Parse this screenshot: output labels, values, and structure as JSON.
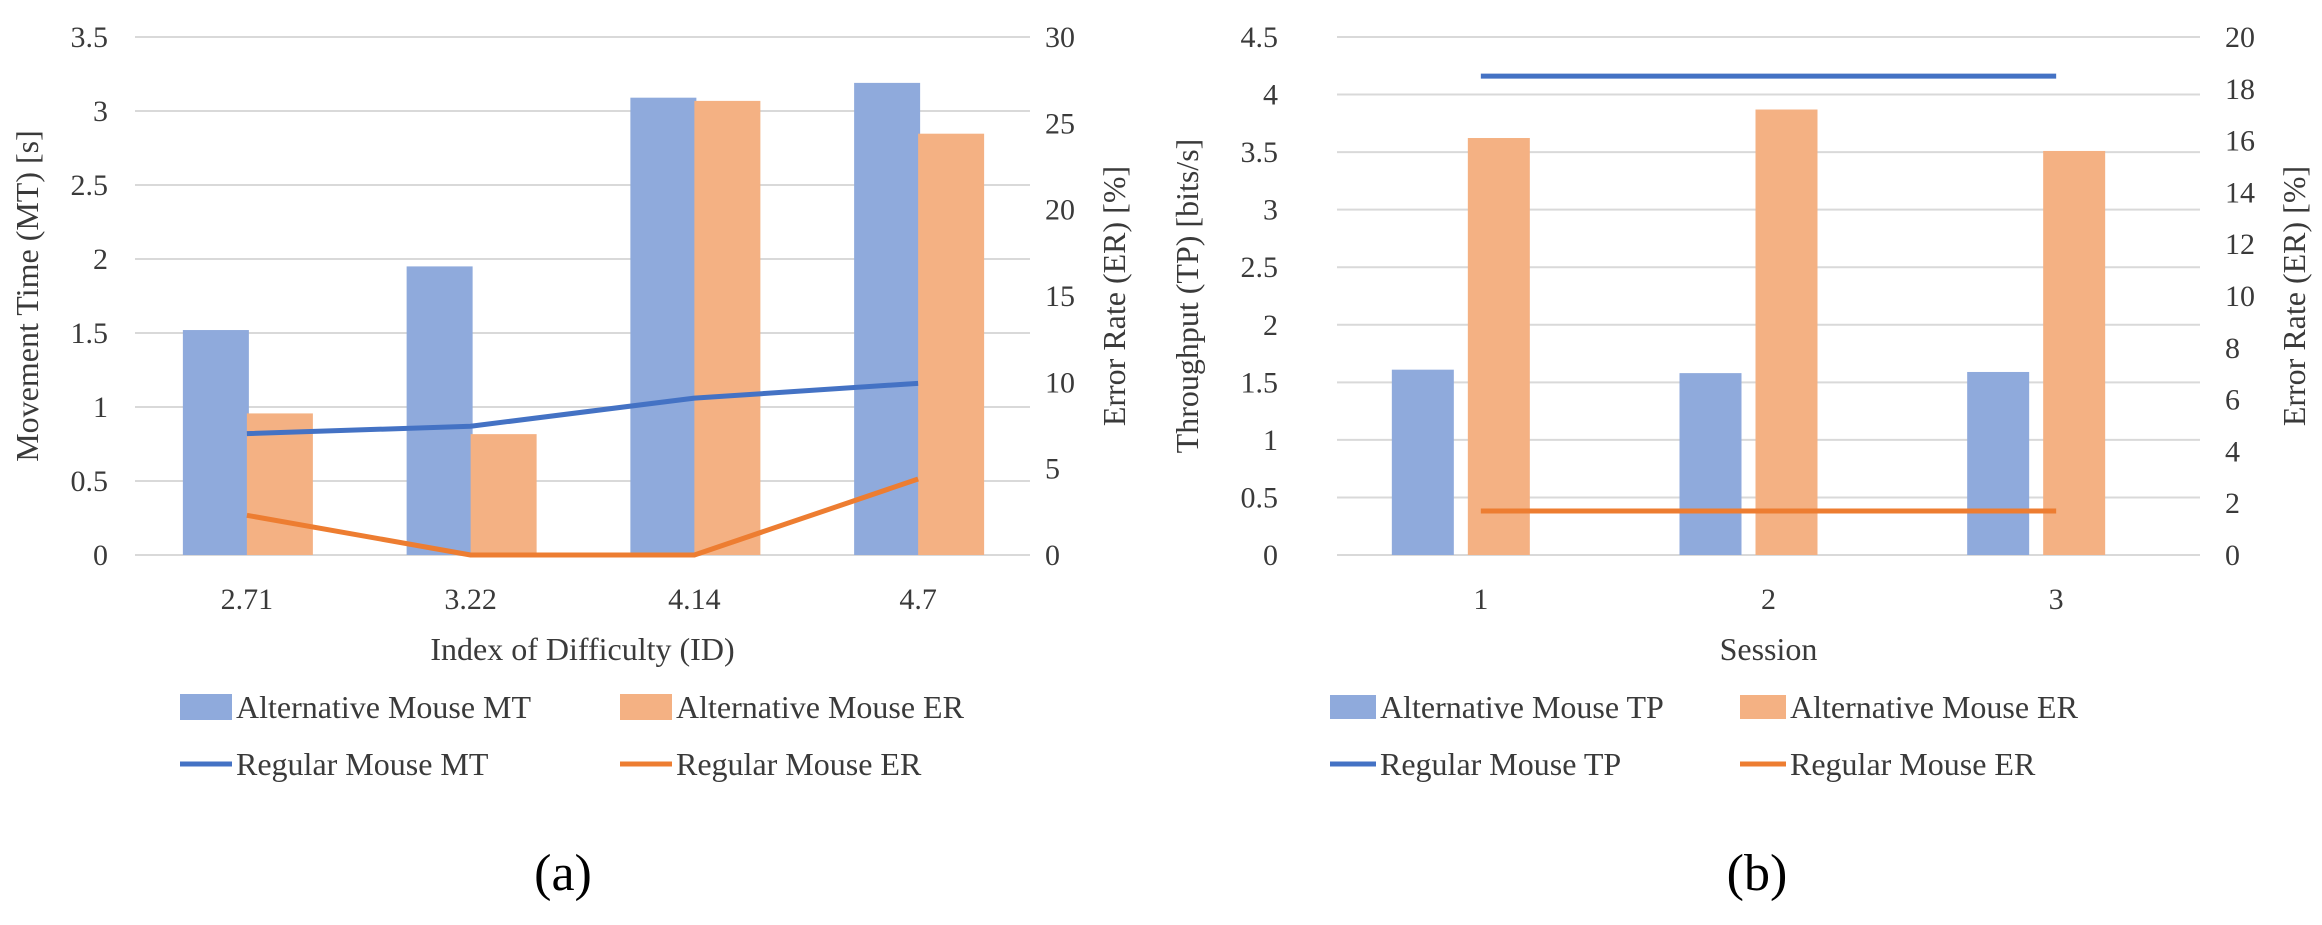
{
  "colors": {
    "alt_bar_1": "#8faadc",
    "alt_bar_2": "#f4b183",
    "reg_line_1": "#4472c4",
    "reg_line_2": "#ed7d31",
    "grid": "#d9d9d9",
    "text": "#3a3a3a"
  },
  "chart_data": [
    {
      "id": "a",
      "type": "bar",
      "panel_label": "(a)",
      "xlabel": "Index of Difficulty (ID)",
      "ylabel": "Movement Time (MT) [s]",
      "y2label": "Error Rate (ER) [%]",
      "categories": [
        "2.71",
        "3.22",
        "4.14",
        "4.7"
      ],
      "ylim": [
        0,
        3.5
      ],
      "yticks": [
        "0",
        "0.5",
        "1",
        "1.5",
        "2",
        "2.5",
        "3",
        "3.5"
      ],
      "y2lim": [
        0,
        30
      ],
      "y2ticks": [
        "0",
        "5",
        "10",
        "15",
        "20",
        "25",
        "30"
      ],
      "grid": true,
      "series": [
        {
          "name": "Alternative Mouse MT",
          "kind": "bar",
          "axis": "left",
          "color": "#8faadc",
          "values": [
            1.52,
            1.95,
            3.09,
            3.19
          ]
        },
        {
          "name": "Alternative Mouse ER",
          "kind": "bar",
          "axis": "right",
          "color": "#f4b183",
          "values": [
            8.2,
            7.0,
            26.3,
            24.4
          ]
        },
        {
          "name": "Regular Mouse MT",
          "kind": "line",
          "axis": "left",
          "color": "#4472c4",
          "values": [
            0.82,
            0.87,
            1.06,
            1.16
          ]
        },
        {
          "name": "Regular Mouse ER",
          "kind": "line",
          "axis": "right",
          "color": "#ed7d31",
          "values": [
            2.3,
            0.0,
            0.0,
            4.4
          ]
        }
      ],
      "legend": [
        {
          "name": "Alternative Mouse MT",
          "marker": "box",
          "color": "#8faadc"
        },
        {
          "name": "Alternative Mouse ER",
          "marker": "box",
          "color": "#f4b183"
        },
        {
          "name": "Regular Mouse MT",
          "marker": "line",
          "color": "#4472c4"
        },
        {
          "name": "Regular Mouse ER",
          "marker": "line",
          "color": "#ed7d31"
        }
      ]
    },
    {
      "id": "b",
      "type": "bar",
      "panel_label": "(b)",
      "xlabel": "Session",
      "ylabel": "Throughput (TP) [bits/s]",
      "y2label": "Error Rate (ER) [%]",
      "categories": [
        "1",
        "2",
        "3"
      ],
      "ylim": [
        0,
        4.5
      ],
      "yticks": [
        "0",
        "0.5",
        "1",
        "1.5",
        "2",
        "2.5",
        "3",
        "3.5",
        "4",
        "4.5"
      ],
      "y2lim": [
        0,
        20
      ],
      "y2ticks": [
        "0",
        "2",
        "4",
        "6",
        "8",
        "10",
        "12",
        "14",
        "16",
        "18",
        "20"
      ],
      "grid": true,
      "series": [
        {
          "name": "Alternative Mouse TP",
          "kind": "bar",
          "axis": "left",
          "color": "#8faadc",
          "values": [
            1.61,
            1.58,
            1.59
          ]
        },
        {
          "name": "Alternative Mouse ER",
          "kind": "bar",
          "axis": "right",
          "color": "#f4b183",
          "values": [
            16.1,
            17.2,
            15.6
          ]
        },
        {
          "name": "Regular Mouse TP",
          "kind": "line",
          "axis": "left",
          "color": "#4472c4",
          "values": [
            4.16,
            4.16,
            4.16
          ]
        },
        {
          "name": "Regular Mouse ER",
          "kind": "line",
          "axis": "right",
          "color": "#ed7d31",
          "values": [
            1.7,
            1.7,
            1.7
          ]
        }
      ],
      "legend": [
        {
          "name": "Alternative Mouse TP",
          "marker": "box",
          "color": "#8faadc"
        },
        {
          "name": "Alternative Mouse ER",
          "marker": "box",
          "color": "#f4b183"
        },
        {
          "name": "Regular Mouse TP",
          "marker": "line",
          "color": "#4472c4"
        },
        {
          "name": "Regular Mouse ER",
          "marker": "line",
          "color": "#ed7d31"
        }
      ]
    }
  ]
}
